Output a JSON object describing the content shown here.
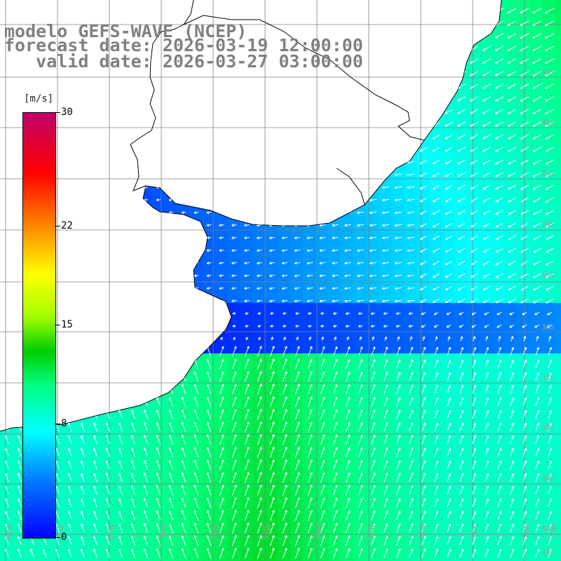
{
  "header": {
    "model_line": "modelo GEFS-WAVE (NCEP)",
    "forecast_line": "forecast date: 2026-03-19 12:00:00",
    "valid_line": "   valid date: 2026-03-27 03:00:00"
  },
  "colorbar": {
    "unit": "[m/s]",
    "ticks": [
      {
        "label": "30",
        "value": 30
      },
      {
        "label": "22",
        "value": 22
      },
      {
        "label": "15",
        "value": 15
      },
      {
        "label": "8",
        "value": 8
      },
      {
        "label": "0",
        "value": 0
      }
    ],
    "min": 0,
    "max": 30,
    "colors": [
      "#0000ff",
      "#0080ff",
      "#00ffff",
      "#00ff80",
      "#00cc00",
      "#a0ff00",
      "#ffff00",
      "#ff8000",
      "#ff0000",
      "#c0006a"
    ]
  },
  "axes": {
    "lat_labels": [
      "31S",
      "32S",
      "33S",
      "34S",
      "35S",
      "36S",
      "37S",
      "38S",
      "39S",
      "40S",
      "41S"
    ],
    "lon_labels": [
      "62W",
      "61W",
      "60W",
      "59W",
      "58W",
      "57W",
      "56W",
      "55W",
      "54W",
      "53W",
      "52W",
      "51W"
    ]
  },
  "colors": {
    "land": "#ffffff",
    "coast": "#000000",
    "grid": "#808080",
    "arrow": "#ffffff"
  }
}
